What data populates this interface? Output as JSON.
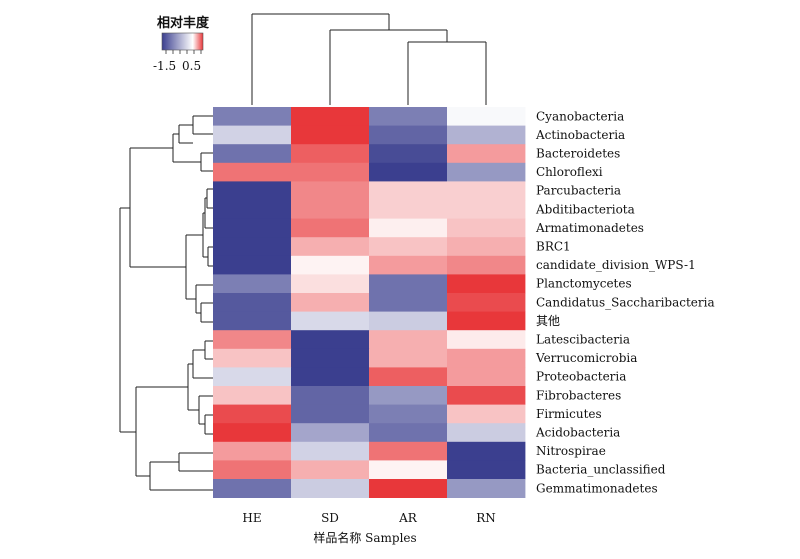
{
  "chart_data": {
    "type": "heatmap",
    "title": "",
    "legend": {
      "title": "相对丰度",
      "tick_labels": [
        "-1.5",
        "0.5"
      ],
      "range": [
        -1.5,
        0.5
      ],
      "colors": {
        "low": "#3b3f8f",
        "mid": "#ffffff",
        "high": "#e8373a"
      }
    },
    "xlabel": "样品名称 Samples",
    "ylabel": "",
    "columns": [
      "HE",
      "SD",
      "AR",
      "RN"
    ],
    "rows": [
      "Cyanobacteria",
      "Actinobacteria",
      "Bacteroidetes",
      "Chloroflexi",
      "Parcubacteria",
      "Abditibacteriota",
      "Armatimonadetes",
      "BRC1",
      "candidate_division_WPS-1",
      "Planctomycetes",
      "Candidatus_Saccharibacteria",
      "其他",
      "Latescibacteria",
      "Verrucomicrobia",
      "Proteobacteria",
      "Fibrobacteres",
      "Firmicutes",
      "Acidobacteria",
      "Nitrospirae",
      "Bacteria_unclassified",
      "Gemmatimonadetes"
    ],
    "values": [
      [
        -1.0,
        0.5,
        -1.0,
        -0.05
      ],
      [
        -0.35,
        0.5,
        -1.2,
        -0.6
      ],
      [
        -1.1,
        0.4,
        -1.4,
        0.25
      ],
      [
        0.35,
        0.35,
        -1.5,
        -0.8
      ],
      [
        -1.5,
        0.3,
        0.12,
        0.12
      ],
      [
        -1.5,
        0.3,
        0.12,
        0.12
      ],
      [
        -1.5,
        0.35,
        0.04,
        0.15
      ],
      [
        -1.5,
        0.2,
        0.15,
        0.2
      ],
      [
        -1.5,
        0.03,
        0.25,
        0.3
      ],
      [
        -1.0,
        0.08,
        -1.1,
        0.5
      ],
      [
        -1.3,
        0.2,
        -1.1,
        0.45
      ],
      [
        -1.3,
        -0.3,
        -0.4,
        0.5
      ],
      [
        0.3,
        -1.5,
        0.2,
        0.05
      ],
      [
        0.15,
        -1.5,
        0.2,
        0.25
      ],
      [
        -0.3,
        -1.5,
        0.4,
        0.25
      ],
      [
        0.15,
        -1.2,
        -0.8,
        0.45
      ],
      [
        0.45,
        -1.2,
        -1.0,
        0.15
      ],
      [
        0.5,
        -0.7,
        -1.1,
        -0.4
      ],
      [
        0.25,
        -0.35,
        0.35,
        -1.5
      ],
      [
        0.35,
        0.2,
        0.03,
        -1.5
      ],
      [
        -1.1,
        -0.4,
        0.5,
        -0.8
      ]
    ]
  }
}
